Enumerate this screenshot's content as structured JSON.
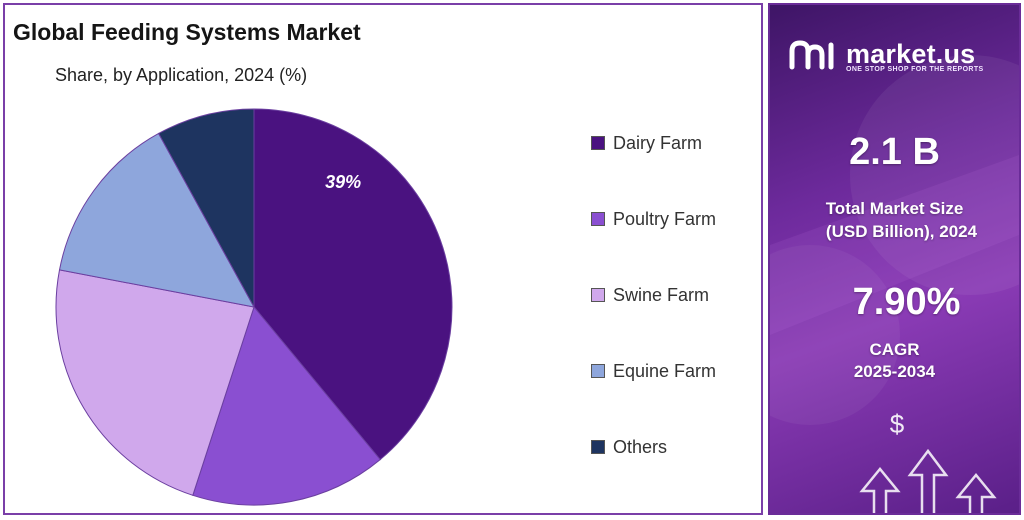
{
  "chart_data": {
    "type": "pie",
    "title": "Global Feeding Systems Market",
    "subtitle": "Share, by Application, 2024 (%)",
    "categories": [
      "Dairy Farm",
      "Poultry Farm",
      "Swine Farm",
      "Equine Farm",
      "Others"
    ],
    "values": [
      39,
      16,
      23,
      14,
      8
    ],
    "colors": [
      "#4a1280",
      "#8a4fd1",
      "#d0a8ec",
      "#8ea6dc",
      "#1e3460"
    ],
    "data_labels": [
      "39%",
      "",
      "",
      "",
      ""
    ],
    "legend_position": "right",
    "start_angle": "top, clockwise"
  },
  "side_panel": {
    "brand_name": "market.us",
    "brand_tagline": "ONE STOP SHOP FOR THE REPORTS",
    "market_size_value": "2.1 B",
    "market_size_label_line1": "Total Market Size",
    "market_size_label_line2": "(USD Billion), 2024",
    "cagr_value": "7.90%",
    "cagr_label_line1": "CAGR",
    "cagr_label_line2": "2025-2034",
    "icon": "dollar-growth-arrows-icon",
    "dollar_symbol": "$"
  }
}
